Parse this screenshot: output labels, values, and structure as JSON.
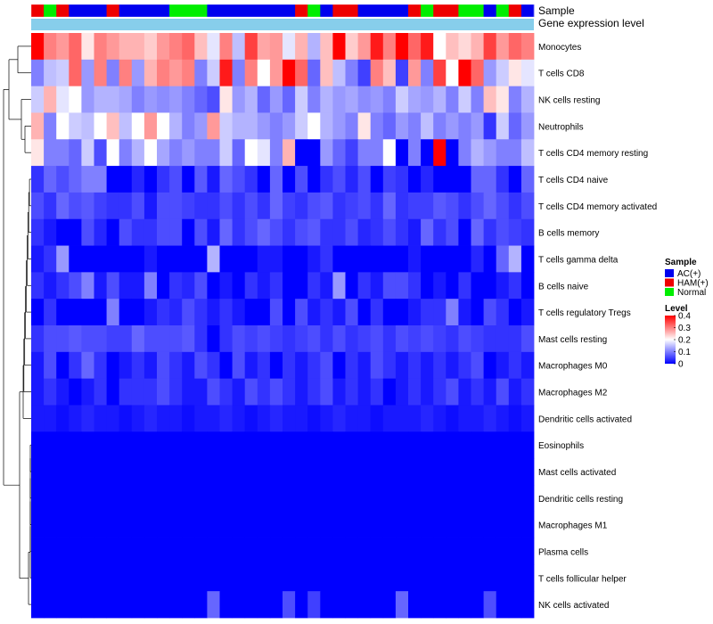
{
  "chart_data": {
    "type": "heatmap",
    "title": "",
    "annotation_tracks": [
      {
        "name": "Sample",
        "values": [
          "HAM(+)",
          "Normal",
          "HAM(+)",
          "AC(+)",
          "AC(+)",
          "AC(+)",
          "HAM(+)",
          "AC(+)",
          "AC(+)",
          "AC(+)",
          "AC(+)",
          "Normal",
          "Normal",
          "Normal",
          "AC(+)",
          "AC(+)",
          "AC(+)",
          "AC(+)",
          "AC(+)",
          "AC(+)",
          "AC(+)",
          "HAM(+)",
          "Normal",
          "AC(+)",
          "HAM(+)",
          "HAM(+)",
          "AC(+)",
          "AC(+)",
          "AC(+)",
          "AC(+)",
          "HAM(+)",
          "Normal",
          "HAM(+)",
          "HAM(+)",
          "Normal",
          "Normal",
          "AC(+)",
          "Normal",
          "HAM(+)",
          "AC(+)"
        ]
      },
      {
        "name": "Gene expression level",
        "values": "uniform"
      }
    ],
    "rows": [
      "Monocytes",
      "T cells CD8",
      "NK cells resting",
      "Neutrophils",
      "T cells CD4 memory resting",
      "T cells CD4 naive",
      "T cells CD4 memory activated",
      "B cells memory",
      "T cells gamma delta",
      "B cells naive",
      "T cells regulatory  Tregs",
      "Mast cells resting",
      "Macrophages M0",
      "Macrophages M2",
      "Dendritic cells activated",
      "Eosinophils",
      "Mast cells activated",
      "Dendritic cells resting",
      "Macrophages M1",
      "Plasma cells",
      "T cells follicular helper",
      "NK cells activated"
    ],
    "n_columns": 40,
    "matrix": [
      [
        0.4,
        0.3,
        0.28,
        0.32,
        0.22,
        0.3,
        0.28,
        0.26,
        0.26,
        0.24,
        0.28,
        0.3,
        0.32,
        0.25,
        0.18,
        0.3,
        0.15,
        0.35,
        0.27,
        0.28,
        0.18,
        0.26,
        0.14,
        0.25,
        0.4,
        0.24,
        0.28,
        0.38,
        0.3,
        0.4,
        0.32,
        0.38,
        0.2,
        0.25,
        0.23,
        0.26,
        0.35,
        0.28,
        0.32,
        0.3
      ],
      [
        0.1,
        0.15,
        0.16,
        0.32,
        0.12,
        0.3,
        0.1,
        0.3,
        0.12,
        0.26,
        0.3,
        0.28,
        0.3,
        0.1,
        0.16,
        0.38,
        0.1,
        0.3,
        0.2,
        0.28,
        0.4,
        0.32,
        0.08,
        0.25,
        0.15,
        0.1,
        0.05,
        0.3,
        0.25,
        0.05,
        0.28,
        0.1,
        0.35,
        0.2,
        0.4,
        0.32,
        0.12,
        0.16,
        0.22,
        0.18
      ],
      [
        0.16,
        0.26,
        0.18,
        0.2,
        0.12,
        0.14,
        0.14,
        0.13,
        0.1,
        0.12,
        0.11,
        0.12,
        0.1,
        0.08,
        0.06,
        0.22,
        0.12,
        0.14,
        0.08,
        0.12,
        0.08,
        0.16,
        0.1,
        0.14,
        0.12,
        0.13,
        0.11,
        0.12,
        0.1,
        0.16,
        0.13,
        0.12,
        0.14,
        0.1,
        0.16,
        0.1,
        0.25,
        0.22,
        0.1,
        0.14
      ],
      [
        0.26,
        0.1,
        0.2,
        0.16,
        0.15,
        0.2,
        0.25,
        0.15,
        0.2,
        0.28,
        0.2,
        0.14,
        0.1,
        0.12,
        0.28,
        0.16,
        0.14,
        0.14,
        0.12,
        0.1,
        0.12,
        0.16,
        0.2,
        0.14,
        0.12,
        0.1,
        0.22,
        0.1,
        0.08,
        0.12,
        0.1,
        0.15,
        0.1,
        0.12,
        0.1,
        0.12,
        0.04,
        0.16,
        0.08,
        0.12
      ],
      [
        0.22,
        0.1,
        0.1,
        0.08,
        0.16,
        0.06,
        0.2,
        0.1,
        0.14,
        0.2,
        0.13,
        0.1,
        0.12,
        0.1,
        0.1,
        0.16,
        0.08,
        0.2,
        0.18,
        0.1,
        0.26,
        0.0,
        0.0,
        0.12,
        0.08,
        0.05,
        0.1,
        0.1,
        0.2,
        0.0,
        0.1,
        0.0,
        0.4,
        0.0,
        0.1,
        0.14,
        0.12,
        0.1,
        0.1,
        0.15
      ],
      [
        0.04,
        0.08,
        0.06,
        0.08,
        0.1,
        0.1,
        0.0,
        0.0,
        0.03,
        0.0,
        0.04,
        0.06,
        0.0,
        0.07,
        0.02,
        0.08,
        0.06,
        0.04,
        0.0,
        0.08,
        0.0,
        0.06,
        0.0,
        0.04,
        0.06,
        0.03,
        0.06,
        0.0,
        0.05,
        0.04,
        0.0,
        0.03,
        0.0,
        0.0,
        0.0,
        0.08,
        0.08,
        0.04,
        0.0,
        0.08
      ],
      [
        0.06,
        0.04,
        0.08,
        0.06,
        0.07,
        0.05,
        0.04,
        0.04,
        0.06,
        0.02,
        0.06,
        0.06,
        0.05,
        0.04,
        0.04,
        0.06,
        0.04,
        0.06,
        0.04,
        0.08,
        0.05,
        0.04,
        0.06,
        0.07,
        0.04,
        0.05,
        0.06,
        0.04,
        0.08,
        0.04,
        0.05,
        0.05,
        0.07,
        0.06,
        0.04,
        0.06,
        0.08,
        0.06,
        0.04,
        0.06
      ],
      [
        0.04,
        0.02,
        0.0,
        0.0,
        0.06,
        0.03,
        0.0,
        0.06,
        0.04,
        0.04,
        0.06,
        0.06,
        0.0,
        0.06,
        0.02,
        0.08,
        0.04,
        0.06,
        0.08,
        0.06,
        0.04,
        0.06,
        0.07,
        0.04,
        0.04,
        0.06,
        0.03,
        0.04,
        0.06,
        0.04,
        0.02,
        0.08,
        0.04,
        0.06,
        0.0,
        0.08,
        0.04,
        0.06,
        0.05,
        0.04
      ],
      [
        0.02,
        0.04,
        0.12,
        0.0,
        0.0,
        0.0,
        0.0,
        0.0,
        0.0,
        0.02,
        0.0,
        0.0,
        0.0,
        0.0,
        0.14,
        0.0,
        0.0,
        0.0,
        0.02,
        0.02,
        0.0,
        0.0,
        0.02,
        0.04,
        0.0,
        0.0,
        0.0,
        0.0,
        0.0,
        0.0,
        0.02,
        0.0,
        0.0,
        0.0,
        0.0,
        0.03,
        0.0,
        0.08,
        0.14,
        0.0
      ],
      [
        0.04,
        0.02,
        0.04,
        0.06,
        0.1,
        0.02,
        0.06,
        0.02,
        0.02,
        0.1,
        0.0,
        0.04,
        0.03,
        0.06,
        0.0,
        0.02,
        0.0,
        0.04,
        0.02,
        0.04,
        0.0,
        0.0,
        0.04,
        0.02,
        0.12,
        0.0,
        0.04,
        0.02,
        0.06,
        0.06,
        0.04,
        0.0,
        0.02,
        0.0,
        0.04,
        0.0,
        0.0,
        0.02,
        0.04,
        0.0
      ],
      [
        0.0,
        0.04,
        0.0,
        0.0,
        0.0,
        0.0,
        0.1,
        0.0,
        0.0,
        0.02,
        0.04,
        0.03,
        0.06,
        0.04,
        0.02,
        0.04,
        0.02,
        0.0,
        0.0,
        0.06,
        0.0,
        0.06,
        0.02,
        0.04,
        0.02,
        0.06,
        0.0,
        0.04,
        0.0,
        0.0,
        0.02,
        0.04,
        0.04,
        0.1,
        0.02,
        0.0,
        0.06,
        0.04,
        0.0,
        0.02
      ],
      [
        0.04,
        0.06,
        0.06,
        0.07,
        0.06,
        0.06,
        0.05,
        0.05,
        0.08,
        0.06,
        0.06,
        0.06,
        0.07,
        0.04,
        0.0,
        0.04,
        0.06,
        0.05,
        0.06,
        0.05,
        0.04,
        0.05,
        0.06,
        0.04,
        0.06,
        0.04,
        0.05,
        0.06,
        0.04,
        0.06,
        0.05,
        0.06,
        0.05,
        0.04,
        0.06,
        0.05,
        0.04,
        0.04,
        0.04,
        0.06
      ],
      [
        0.02,
        0.06,
        0.0,
        0.04,
        0.08,
        0.04,
        0.0,
        0.02,
        0.04,
        0.02,
        0.06,
        0.04,
        0.02,
        0.06,
        0.04,
        0.0,
        0.06,
        0.02,
        0.04,
        0.0,
        0.04,
        0.02,
        0.04,
        0.06,
        0.0,
        0.04,
        0.02,
        0.06,
        0.04,
        0.02,
        0.04,
        0.02,
        0.04,
        0.02,
        0.04,
        0.06,
        0.0,
        0.02,
        0.04,
        0.02
      ],
      [
        0.02,
        0.04,
        0.02,
        0.0,
        0.02,
        0.04,
        0.0,
        0.04,
        0.04,
        0.04,
        0.06,
        0.04,
        0.02,
        0.02,
        0.06,
        0.04,
        0.02,
        0.06,
        0.04,
        0.06,
        0.04,
        0.02,
        0.04,
        0.06,
        0.02,
        0.04,
        0.02,
        0.04,
        0.0,
        0.02,
        0.04,
        0.02,
        0.04,
        0.06,
        0.02,
        0.04,
        0.02,
        0.06,
        0.02,
        0.04
      ],
      [
        0.02,
        0.02,
        0.01,
        0.02,
        0.03,
        0.02,
        0.02,
        0.01,
        0.02,
        0.03,
        0.02,
        0.02,
        0.01,
        0.02,
        0.02,
        0.03,
        0.02,
        0.01,
        0.02,
        0.03,
        0.02,
        0.02,
        0.01,
        0.02,
        0.03,
        0.02,
        0.02,
        0.01,
        0.02,
        0.02,
        0.02,
        0.03,
        0.02,
        0.01,
        0.02,
        0.02,
        0.03,
        0.02,
        0.01,
        0.02
      ],
      [
        0,
        0,
        0,
        0,
        0,
        0,
        0,
        0,
        0,
        0,
        0,
        0,
        0,
        0,
        0,
        0,
        0,
        0,
        0,
        0,
        0,
        0,
        0,
        0,
        0,
        0,
        0,
        0,
        0,
        0,
        0,
        0,
        0,
        0,
        0,
        0,
        0,
        0,
        0,
        0
      ],
      [
        0,
        0,
        0,
        0,
        0,
        0,
        0,
        0,
        0,
        0,
        0,
        0,
        0,
        0,
        0,
        0,
        0,
        0,
        0,
        0,
        0,
        0,
        0,
        0,
        0,
        0,
        0,
        0,
        0,
        0,
        0,
        0,
        0,
        0,
        0,
        0,
        0,
        0,
        0,
        0
      ],
      [
        0,
        0,
        0,
        0,
        0,
        0,
        0,
        0,
        0,
        0,
        0,
        0,
        0,
        0,
        0,
        0,
        0,
        0,
        0,
        0,
        0,
        0,
        0,
        0,
        0,
        0,
        0,
        0,
        0,
        0,
        0,
        0,
        0,
        0,
        0,
        0,
        0,
        0,
        0,
        0
      ],
      [
        0,
        0,
        0,
        0,
        0,
        0,
        0,
        0,
        0,
        0,
        0,
        0,
        0,
        0,
        0,
        0,
        0,
        0,
        0,
        0,
        0,
        0,
        0,
        0,
        0,
        0,
        0,
        0,
        0,
        0,
        0,
        0,
        0,
        0,
        0,
        0,
        0,
        0,
        0,
        0
      ],
      [
        0,
        0,
        0,
        0,
        0,
        0,
        0,
        0,
        0,
        0,
        0,
        0,
        0,
        0,
        0,
        0,
        0,
        0,
        0,
        0,
        0,
        0,
        0,
        0,
        0,
        0,
        0,
        0,
        0,
        0,
        0,
        0,
        0,
        0,
        0,
        0,
        0,
        0,
        0,
        0
      ],
      [
        0,
        0,
        0,
        0,
        0,
        0,
        0,
        0,
        0,
        0,
        0,
        0,
        0,
        0,
        0,
        0,
        0,
        0,
        0,
        0,
        0,
        0,
        0,
        0,
        0,
        0,
        0,
        0,
        0,
        0,
        0,
        0,
        0,
        0,
        0,
        0,
        0,
        0,
        0,
        0
      ],
      [
        0,
        0,
        0,
        0,
        0,
        0,
        0,
        0,
        0,
        0,
        0,
        0,
        0,
        0,
        0.08,
        0,
        0,
        0,
        0,
        0,
        0.06,
        0,
        0.05,
        0,
        0,
        0,
        0,
        0,
        0,
        0.08,
        0,
        0,
        0,
        0,
        0,
        0,
        0.06,
        0,
        0,
        0
      ]
    ],
    "legend": {
      "sample": {
        "title": "Sample",
        "items": [
          {
            "label": "AC(+)",
            "color": "#0000ee"
          },
          {
            "label": "HAM(+)",
            "color": "#ee0000"
          },
          {
            "label": "Normal",
            "color": "#00ee00"
          }
        ]
      },
      "level": {
        "title": "Level",
        "ticks": [
          0.4,
          0.3,
          0.2,
          0.1,
          0
        ],
        "tick_labels": [
          "0.4",
          "0.3",
          "0.2",
          "0.1",
          "0"
        ],
        "range": [
          0,
          0.4
        ]
      },
      "placement": "right"
    },
    "colors": {
      "low": "#0000ff",
      "mid": "#ffffff",
      "high": "#ff0000",
      "track2": "#87ceeb",
      "dendro": "#000000"
    }
  }
}
